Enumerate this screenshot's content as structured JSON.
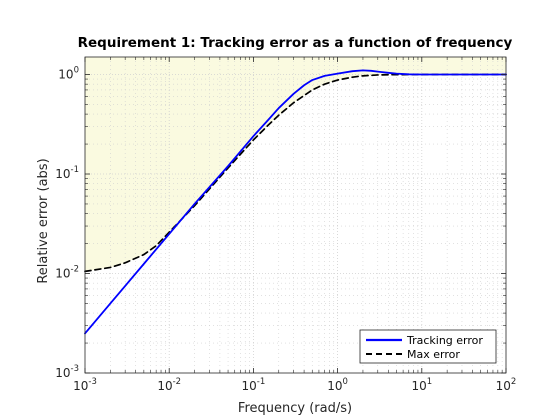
{
  "chart_data": {
    "type": "line",
    "title": "Requirement 1: Tracking error as a function of frequency",
    "xlabel": "Frequency (rad/s)",
    "ylabel": "Relative error (abs)",
    "x_scale": "log",
    "y_scale": "log",
    "xlim": [
      0.001,
      100
    ],
    "ylim": [
      0.001,
      1.5
    ],
    "grid": true,
    "legend_position": "bottom-right",
    "x_ticks": [
      {
        "value": 0.001,
        "base": "10",
        "exp": "-3"
      },
      {
        "value": 0.01,
        "base": "10",
        "exp": "-2"
      },
      {
        "value": 0.1,
        "base": "10",
        "exp": "-1"
      },
      {
        "value": 1,
        "base": "10",
        "exp": "0"
      },
      {
        "value": 10,
        "base": "10",
        "exp": "1"
      },
      {
        "value": 100,
        "base": "10",
        "exp": "2"
      }
    ],
    "y_ticks": [
      {
        "value": 0.001,
        "base": "10",
        "exp": "-3"
      },
      {
        "value": 0.01,
        "base": "10",
        "exp": "-2"
      },
      {
        "value": 0.1,
        "base": "10",
        "exp": "-1"
      },
      {
        "value": 1,
        "base": "10",
        "exp": "0"
      }
    ],
    "colors": {
      "tracking": "#0000ff",
      "max_error": "#000000",
      "shaded_region": "#fafae0",
      "grid": "#d0d0d0",
      "axis": "#262626"
    },
    "series": [
      {
        "name": "Tracking error",
        "style": "solid",
        "x": [
          0.001,
          0.002,
          0.005,
          0.01,
          0.02,
          0.05,
          0.1,
          0.15,
          0.2,
          0.3,
          0.4,
          0.5,
          0.7,
          1,
          1.5,
          2,
          2.5,
          3,
          4,
          5,
          7,
          10,
          20,
          50,
          100
        ],
        "y": [
          0.0025,
          0.005,
          0.0125,
          0.025,
          0.05,
          0.12,
          0.24,
          0.35,
          0.46,
          0.64,
          0.78,
          0.88,
          0.97,
          1.02,
          1.08,
          1.1,
          1.09,
          1.07,
          1.04,
          1.02,
          1.005,
          1.0,
          1.0,
          1.0,
          1.0
        ]
      },
      {
        "name": "Max error",
        "style": "dashed",
        "x": [
          0.001,
          0.002,
          0.003,
          0.005,
          0.007,
          0.01,
          0.02,
          0.05,
          0.1,
          0.15,
          0.2,
          0.3,
          0.5,
          0.7,
          1,
          1.5,
          2,
          3,
          5,
          10,
          20,
          50,
          100
        ],
        "y": [
          0.0105,
          0.0115,
          0.0128,
          0.0155,
          0.019,
          0.026,
          0.048,
          0.115,
          0.22,
          0.31,
          0.39,
          0.52,
          0.7,
          0.8,
          0.88,
          0.94,
          0.97,
          0.99,
          0.998,
          1.0,
          1.0,
          1.0,
          1.0
        ]
      }
    ],
    "shaded_region": {
      "boundary": "Max error",
      "fill": "above"
    }
  }
}
